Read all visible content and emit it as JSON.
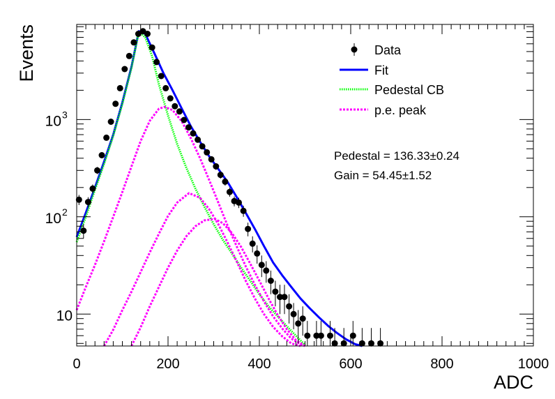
{
  "chart_data": {
    "type": "scatter",
    "xlabel": "ADC",
    "ylabel": "Events",
    "xlim": [
      0,
      1000
    ],
    "ylim": [
      4.7,
      9500
    ],
    "yscale": "log",
    "xticks": [
      {
        "value": 0,
        "label": "0"
      },
      {
        "value": 200,
        "label": "200"
      },
      {
        "value": 400,
        "label": "400"
      },
      {
        "value": 600,
        "label": "600"
      },
      {
        "value": 800,
        "label": "800"
      },
      {
        "value": 1000,
        "label": "1000"
      }
    ],
    "yticks": [
      {
        "value": 10,
        "label": "10",
        "sup": ""
      },
      {
        "value": 100,
        "label": "10",
        "sup": "2"
      },
      {
        "value": 1000,
        "label": "10",
        "sup": "3"
      }
    ],
    "legend": {
      "position": "top-right",
      "entries": [
        {
          "label": "Data",
          "style": "marker",
          "color": "#000000"
        },
        {
          "label": "Fit",
          "style": "solid",
          "color": "#0000ff"
        },
        {
          "label": "Pedestal CB",
          "style": "dotted",
          "color": "#00ff00"
        },
        {
          "label": "p.e. peak",
          "style": "dashed",
          "color": "#ff00ff"
        }
      ]
    },
    "annotations": [
      {
        "label": "Pedestal = 136.33",
        "pm": "±",
        "err": "0.24"
      },
      {
        "label": "Gain = 54.45",
        "pm": "±",
        "err": "1.52"
      }
    ],
    "series": [
      {
        "name": "Data",
        "style": "points",
        "color": "#000000",
        "x": [
          5,
          15,
          25,
          35,
          45,
          55,
          65,
          75,
          85,
          95,
          105,
          115,
          125,
          135,
          145,
          155,
          165,
          175,
          185,
          195,
          205,
          215,
          225,
          235,
          245,
          255,
          265,
          275,
          285,
          295,
          305,
          315,
          325,
          335,
          345,
          355,
          365,
          375,
          385,
          395,
          405,
          415,
          425,
          435,
          445,
          455,
          465,
          475,
          485,
          495,
          505,
          525,
          535,
          555,
          565,
          585,
          605,
          625,
          645,
          665
        ],
        "y": [
          150,
          72,
          142,
          195,
          300,
          430,
          650,
          950,
          1450,
          2100,
          3300,
          4500,
          6200,
          7600,
          8100,
          7600,
          5500,
          3900,
          2800,
          2100,
          1650,
          1370,
          1210,
          990,
          830,
          720,
          620,
          530,
          460,
          390,
          330,
          270,
          230,
          180,
          145,
          140,
          115,
          75,
          53,
          42,
          32,
          28,
          22,
          17,
          15,
          15,
          12,
          10,
          8,
          9,
          6,
          6,
          6,
          6,
          5,
          5,
          6,
          5,
          5,
          5
        ],
        "err": [
          18,
          12,
          17,
          20,
          25,
          30,
          37,
          45,
          55,
          65,
          80,
          95,
          110,
          120,
          125,
          120,
          105,
          88,
          75,
          65,
          58,
          52,
          49,
          44,
          40,
          37,
          35,
          32,
          30,
          28,
          26,
          23,
          21,
          19,
          17,
          17,
          15,
          12,
          10,
          9,
          8,
          7,
          6,
          5,
          5,
          5,
          4,
          3,
          3,
          3,
          2.5,
          2.5,
          2.5,
          2.5,
          2.2,
          2.2,
          2.5,
          2.2,
          2.2,
          2.2
        ]
      },
      {
        "name": "Fit",
        "style": "solid",
        "color": "#0000ff",
        "x": [
          0,
          20,
          40,
          60,
          80,
          100,
          120,
          136,
          150,
          170,
          190,
          210,
          230,
          250,
          270,
          290,
          310,
          330,
          350,
          370,
          390,
          410,
          430,
          450,
          470,
          490,
          510,
          530,
          550,
          570,
          590,
          610,
          625
        ],
        "y": [
          62,
          110,
          200,
          370,
          700,
          1500,
          3500,
          8100,
          7600,
          4800,
          3000,
          2000,
          1300,
          850,
          590,
          420,
          310,
          230,
          160,
          110,
          75,
          50,
          34,
          25,
          19,
          14.5,
          11.5,
          9.3,
          7.6,
          6.4,
          5.5,
          4.9,
          4.6
        ]
      },
      {
        "name": "Pedestal CB",
        "style": "dotted",
        "color": "#00ff00",
        "x": [
          0,
          20,
          40,
          60,
          80,
          100,
          120,
          136,
          150,
          165,
          180,
          200,
          220,
          240,
          260,
          280,
          300,
          320,
          340,
          360,
          380,
          400,
          420,
          440,
          460,
          480,
          500
        ],
        "y": [
          55,
          100,
          190,
          350,
          680,
          1450,
          3400,
          8000,
          7000,
          4500,
          2300,
          1100,
          560,
          320,
          195,
          126,
          84,
          58,
          42,
          30,
          22,
          16,
          12,
          9.5,
          7.5,
          6,
          4.8
        ]
      },
      {
        "name": "p.e. peak 1",
        "style": "dashed",
        "color": "#ff00ff",
        "x": [
          0,
          20,
          40,
          60,
          80,
          100,
          120,
          140,
          160,
          180,
          192,
          210,
          230,
          250,
          270,
          290,
          310,
          330,
          350,
          370,
          390,
          410,
          430,
          450,
          470,
          490,
          500
        ],
        "y": [
          11,
          19,
          32,
          56,
          100,
          180,
          330,
          600,
          970,
          1290,
          1350,
          1250,
          960,
          640,
          400,
          240,
          140,
          82,
          50,
          31,
          20,
          13.5,
          9.5,
          7.1,
          5.6,
          4.9,
          4.7
        ]
      },
      {
        "name": "p.e. peak 2",
        "style": "dashed",
        "color": "#ff00ff",
        "x": [
          60,
          80,
          100,
          120,
          140,
          160,
          180,
          200,
          220,
          246,
          270,
          290,
          310,
          330,
          350,
          370,
          390,
          410,
          430,
          450,
          470,
          490
        ],
        "y": [
          4.7,
          6.9,
          11,
          17,
          27,
          43,
          67,
          102,
          140,
          175,
          157,
          120,
          84,
          55,
          35,
          22,
          14.5,
          10,
          7.4,
          5.9,
          5.0,
          4.7
        ]
      },
      {
        "name": "p.e. peak 3",
        "style": "dashed",
        "color": "#ff00ff",
        "x": [
          120,
          140,
          160,
          180,
          200,
          220,
          240,
          260,
          280,
          302,
          320,
          340,
          360,
          380,
          400,
          420,
          440,
          460,
          480,
          500
        ],
        "y": [
          4.7,
          7.3,
          12,
          19,
          30,
          45,
          63,
          80,
          92,
          95,
          86,
          68,
          49,
          33,
          22,
          14.5,
          9.8,
          7,
          5.4,
          4.7
        ]
      }
    ]
  }
}
